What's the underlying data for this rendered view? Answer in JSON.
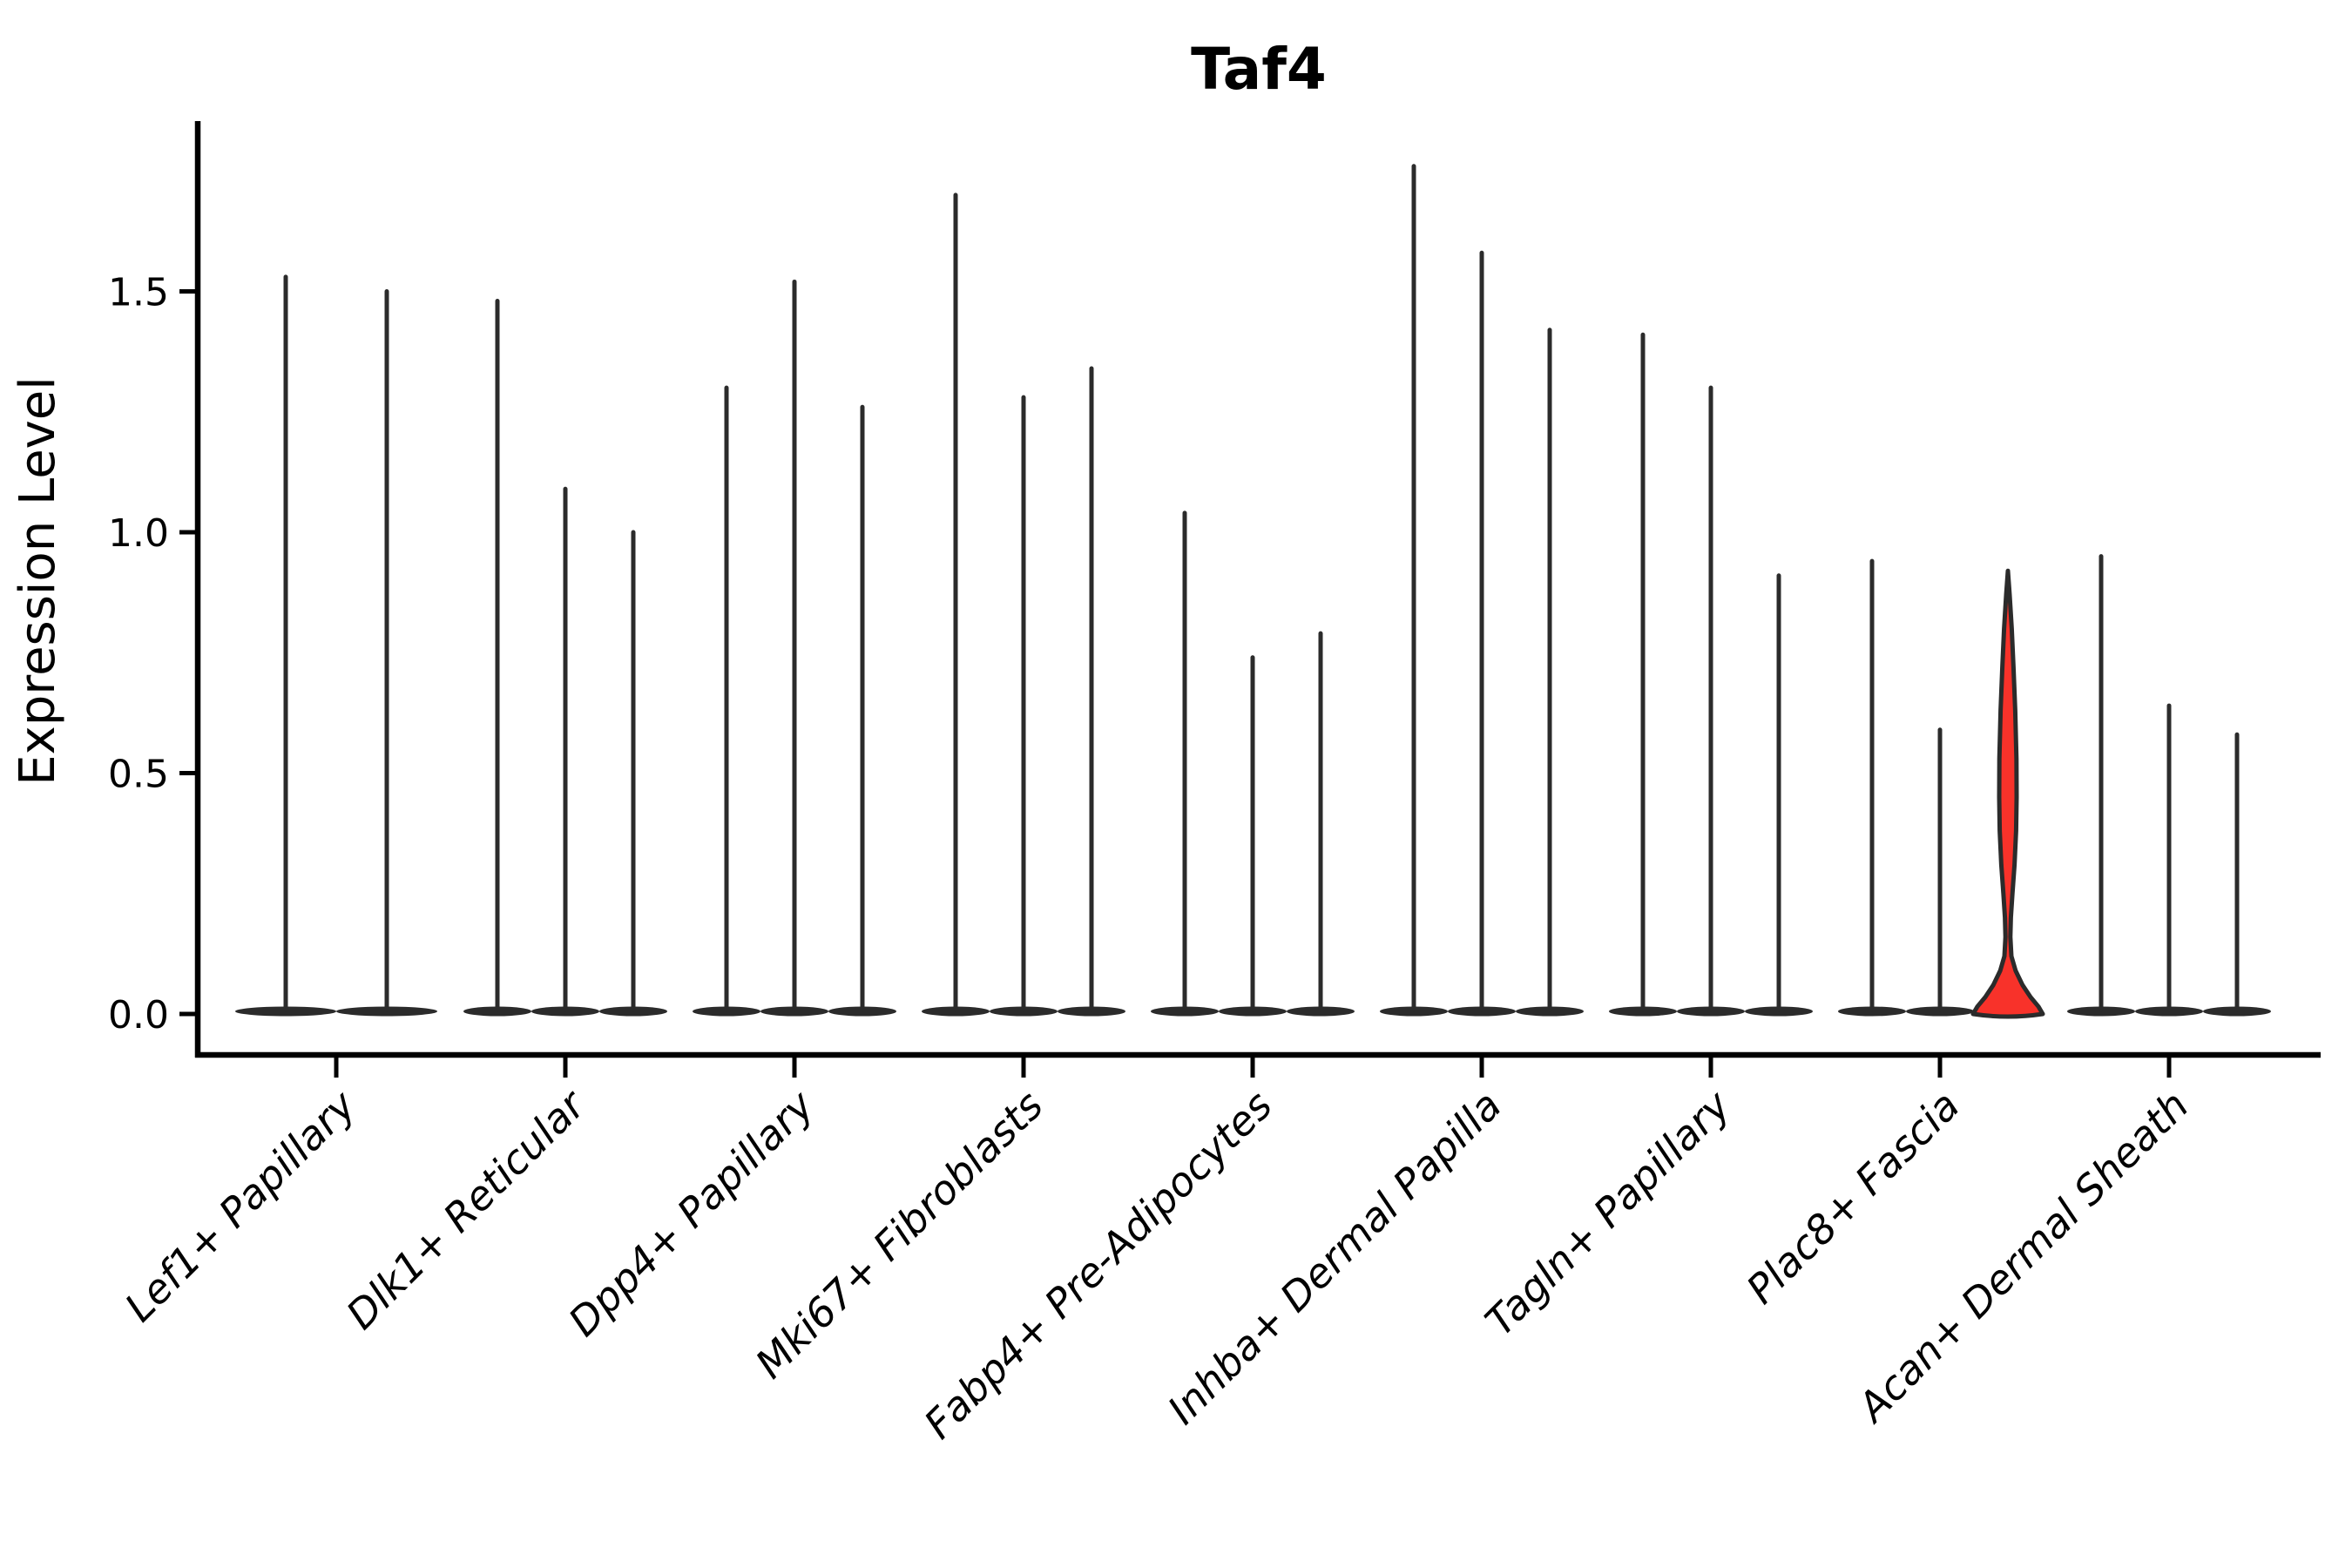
{
  "chart_data": {
    "type": "violin",
    "title": "Taf4",
    "ylabel": "Expression Level",
    "xlabel": "",
    "ylim": [
      0,
      1.85
    ],
    "yticks": [
      0.0,
      0.5,
      1.0,
      1.5
    ],
    "ytick_labels": [
      "0.0",
      "0.5",
      "1.0",
      "1.5"
    ],
    "grid": false,
    "legend": "none",
    "categories": [
      "Lef1+ Papillary",
      "Dlk1+ Reticular",
      "Dpp4+ Papillary",
      "Mki67+ Fibroblasts",
      "Fabp4+ Pre-Adipocytes",
      "Inhba+ Dermal Papilla",
      "Tagln+ Papillary",
      "Plac8+ Fascia",
      "Acan+ Dermal Sheath"
    ],
    "groups": [
      {
        "label": "Lef1+ Papillary",
        "violin_max_values": [
          1.53,
          1.5
        ]
      },
      {
        "label": "Dlk1+ Reticular",
        "violin_max_values": [
          1.48,
          1.09,
          1.0
        ]
      },
      {
        "label": "Dpp4+ Papillary",
        "violin_max_values": [
          1.3,
          1.52,
          1.26
        ]
      },
      {
        "label": "Mki67+ Fibroblasts",
        "violin_max_values": [
          1.7,
          1.28,
          1.34
        ]
      },
      {
        "label": "Fabp4+ Pre-Adipocytes",
        "violin_max_values": [
          1.04,
          0.74,
          0.79
        ]
      },
      {
        "label": "Inhba+ Dermal Papilla",
        "violin_max_values": [
          1.76,
          1.58,
          1.42
        ]
      },
      {
        "label": "Tagln+ Papillary",
        "violin_max_values": [
          1.41,
          1.3,
          0.91
        ]
      },
      {
        "label": "Plac8+ Fascia",
        "violin_max_values": [
          0.94,
          0.59,
          0.92
        ],
        "highlight_index": 2
      },
      {
        "label": "Acan+ Dermal Sheath",
        "violin_max_values": [
          0.95,
          0.64,
          0.58
        ]
      }
    ],
    "highlighted_violin": {
      "group": "Plac8+ Fascia",
      "max_value": 0.92,
      "fill_color": "#f8322a",
      "density_profile": [
        [
          0.92,
          0.0
        ],
        [
          0.87,
          0.05
        ],
        [
          0.8,
          0.11
        ],
        [
          0.72,
          0.16
        ],
        [
          0.63,
          0.21
        ],
        [
          0.53,
          0.245
        ],
        [
          0.45,
          0.25
        ],
        [
          0.38,
          0.235
        ],
        [
          0.31,
          0.19
        ],
        [
          0.25,
          0.13
        ],
        [
          0.2,
          0.085
        ],
        [
          0.16,
          0.07
        ],
        [
          0.12,
          0.1
        ],
        [
          0.09,
          0.22
        ],
        [
          0.06,
          0.42
        ],
        [
          0.035,
          0.65
        ],
        [
          0.015,
          0.88
        ],
        [
          0.0,
          1.0
        ]
      ]
    },
    "colors": {
      "violin_outline": "#2b2b2b",
      "highlight_fill": "#f8322a",
      "axis": "#000000",
      "text": "#000000",
      "background": "#ffffff"
    }
  }
}
